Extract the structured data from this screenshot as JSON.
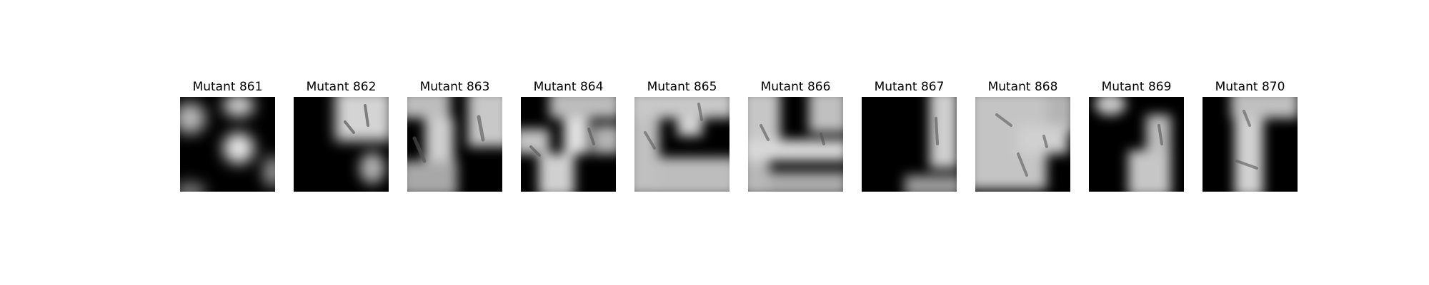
{
  "panels": [
    {
      "title": "Mutant 861",
      "image": "grayscale-blur-mask-frame"
    },
    {
      "title": "Mutant 862",
      "image": "grayscale-blur-mask-frame"
    },
    {
      "title": "Mutant 863",
      "image": "grayscale-blur-mask-frame"
    },
    {
      "title": "Mutant 864",
      "image": "grayscale-blur-mask-frame"
    },
    {
      "title": "Mutant 865",
      "image": "grayscale-blur-mask-frame"
    },
    {
      "title": "Mutant 866",
      "image": "grayscale-blur-mask-frame"
    },
    {
      "title": "Mutant 867",
      "image": "grayscale-blur-mask-frame"
    },
    {
      "title": "Mutant 868",
      "image": "grayscale-blur-mask-frame"
    },
    {
      "title": "Mutant 869",
      "image": "grayscale-blur-mask-frame"
    },
    {
      "title": "Mutant 870",
      "image": "grayscale-blur-mask-frame"
    }
  ]
}
